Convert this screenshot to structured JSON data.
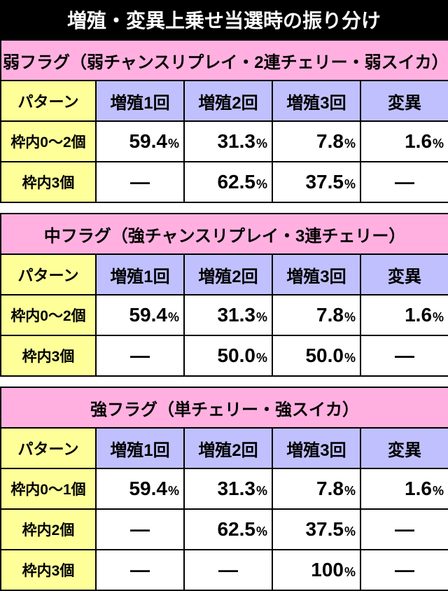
{
  "title": "増殖・変異上乗せ当選時の振り分け",
  "columns_label": "パターン",
  "columns": [
    "増殖1回",
    "増殖2回",
    "増殖3回",
    "変異"
  ],
  "sections": [
    {
      "header": "弱フラグ（弱チャンスリプレイ・2連チェリー・弱スイカ）",
      "rows": [
        {
          "label": "枠内0～2個",
          "cells": [
            "59.4",
            "31.3",
            "7.8",
            "1.6"
          ]
        },
        {
          "label": "枠内3個",
          "cells": [
            null,
            "62.5",
            "37.5",
            null
          ]
        }
      ]
    },
    {
      "header": "中フラグ（強チャンスリプレイ・3連チェリー）",
      "rows": [
        {
          "label": "枠内0～2個",
          "cells": [
            "59.4",
            "31.3",
            "7.8",
            "1.6"
          ]
        },
        {
          "label": "枠内3個",
          "cells": [
            null,
            "50.0",
            "50.0",
            null
          ]
        }
      ]
    },
    {
      "header": "強フラグ（単チェリー・強スイカ）",
      "rows": [
        {
          "label": "枠内0～1個",
          "cells": [
            "59.4",
            "31.3",
            "7.8",
            "1.6"
          ]
        },
        {
          "label": "枠内2個",
          "cells": [
            null,
            "62.5",
            "37.5",
            null
          ]
        },
        {
          "label": "枠内3個",
          "cells": [
            null,
            null,
            "100",
            null
          ]
        }
      ]
    }
  ],
  "dash": "―",
  "pct": "%",
  "colors": {
    "title_bg": "#000000",
    "title_fg": "#ffffff",
    "section_bg": "#ffb0e0",
    "pattern_bg": "#ffff99",
    "col_head_bg": "#c0c0ff",
    "row_head_bg": "#ffff99",
    "cell_bg": "#ffffff",
    "border": "#000000"
  }
}
